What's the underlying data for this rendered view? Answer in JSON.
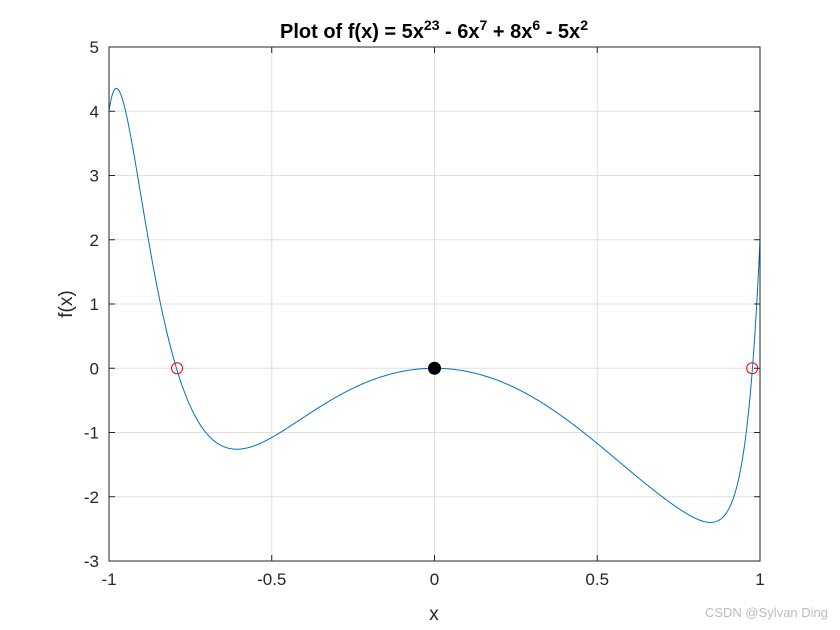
{
  "chart_data": {
    "type": "line",
    "title": {
      "parts": [
        {
          "text": "Plot of f(x) = 5x",
          "sup": false
        },
        {
          "text": "23",
          "sup": true
        },
        {
          "text": " - 6x",
          "sup": false
        },
        {
          "text": "7",
          "sup": true
        },
        {
          "text": " + 8x",
          "sup": false
        },
        {
          "text": "6",
          "sup": true
        },
        {
          "text": " - 5x",
          "sup": false
        },
        {
          "text": "2",
          "sup": true
        }
      ]
    },
    "xlabel": "x",
    "ylabel": "f(x)",
    "xlim": [
      -1,
      1
    ],
    "ylim": [
      -3,
      5
    ],
    "xticks": [
      -1,
      -0.5,
      0,
      0.5,
      1
    ],
    "xtick_labels": [
      "-1",
      "-0.5",
      "0",
      "0.5",
      "1"
    ],
    "yticks": [
      -3,
      -2,
      -1,
      0,
      1,
      2,
      3,
      4,
      5
    ],
    "ytick_labels": [
      "-3",
      "-2",
      "-1",
      "0",
      "1",
      "2",
      "3",
      "4",
      "5"
    ],
    "grid": true,
    "function": {
      "coefficients": [
        {
          "coef": 5,
          "power": 23
        },
        {
          "coef": -6,
          "power": 7
        },
        {
          "coef": 8,
          "power": 6
        },
        {
          "coef": -5,
          "power": 2
        }
      ],
      "color": "#0072BD"
    },
    "markers": {
      "roots": {
        "points": [
          {
            "x": -0.791,
            "y": 0
          },
          {
            "x": 0.976,
            "y": 0
          }
        ],
        "style": "open-circle",
        "color": "#FF0000"
      },
      "highlight": {
        "points": [
          {
            "x": 0,
            "y": 0
          }
        ],
        "style": "filled-circle",
        "color": "#000000"
      }
    }
  },
  "watermark": "CSDN @Sylvan Ding"
}
